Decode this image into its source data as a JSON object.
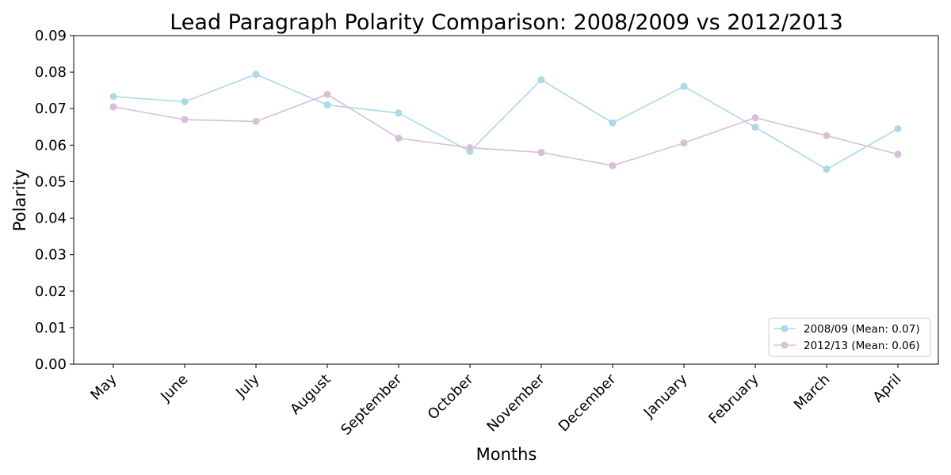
{
  "chart_data": {
    "type": "line",
    "title": "Lead Paragraph Polarity Comparison: 2008/2009 vs 2012/2013",
    "xlabel": "Months",
    "ylabel": "Polarity",
    "categories": [
      "May",
      "June",
      "July",
      "August",
      "September",
      "October",
      "November",
      "December",
      "January",
      "February",
      "March",
      "April"
    ],
    "ylim": [
      0,
      0.09
    ],
    "yticks": [
      "0.00",
      "0.01",
      "0.02",
      "0.03",
      "0.04",
      "0.05",
      "0.06",
      "0.07",
      "0.08",
      "0.09"
    ],
    "grid": false,
    "legend_position": "bottom-right",
    "series": [
      {
        "name": "2008/09 (Mean: 0.07)",
        "color": "#add8e6",
        "values": [
          0.0733,
          0.0719,
          0.0794,
          0.071,
          0.0688,
          0.0583,
          0.0779,
          0.0661,
          0.0761,
          0.0649,
          0.0534,
          0.0645
        ]
      },
      {
        "name": "2012/13 (Mean: 0.06)",
        "color": "#d8bfd8",
        "values": [
          0.0705,
          0.067,
          0.0665,
          0.0739,
          0.0619,
          0.0593,
          0.058,
          0.0544,
          0.0606,
          0.0675,
          0.0626,
          0.0575
        ]
      }
    ]
  }
}
